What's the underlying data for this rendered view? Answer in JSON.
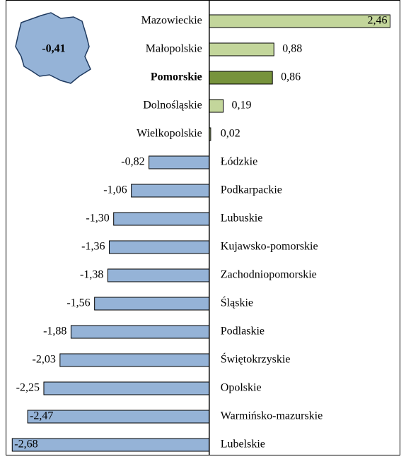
{
  "chart_data": {
    "type": "bar",
    "orientation": "horizontal",
    "annotation": "-0,41",
    "categories": [
      "Mazowieckie",
      "Małopolskie",
      "Pomorskie",
      "Dolnośląskie",
      "Wielkopolskie",
      "Łódzkie",
      "Podkarpackie",
      "Lubuskie",
      "Kujawsko-pomorskie",
      "Zachodniopomorskie",
      "Śląskie",
      "Podlaskie",
      "Świętokrzyskie",
      "Opolskie",
      "Warmińsko-mazurskie",
      "Lubelskie"
    ],
    "values": [
      2.46,
      0.88,
      0.86,
      0.19,
      0.02,
      -0.82,
      -1.06,
      -1.3,
      -1.36,
      -1.38,
      -1.56,
      -1.88,
      -2.03,
      -2.25,
      -2.47,
      -2.68
    ],
    "value_labels": [
      "2,46",
      "0,88",
      "0,86",
      "0,19",
      "0,02",
      "-0,82",
      "-1,06",
      "-1,30",
      "-1,36",
      "-1,38",
      "-1,56",
      "-1,88",
      "-2,03",
      "-2,25",
      "-2,47",
      "-2,68"
    ],
    "colors": [
      "#c3d69b",
      "#c3d69b",
      "#77933c",
      "#c3d69b",
      "#c3d69b",
      "#95b3d7",
      "#95b3d7",
      "#95b3d7",
      "#95b3d7",
      "#95b3d7",
      "#95b3d7",
      "#95b3d7",
      "#95b3d7",
      "#95b3d7",
      "#95b3d7",
      "#95b3d7"
    ],
    "highlight": "Pomorskie",
    "xlim": [
      -2.75,
      2.6
    ]
  }
}
